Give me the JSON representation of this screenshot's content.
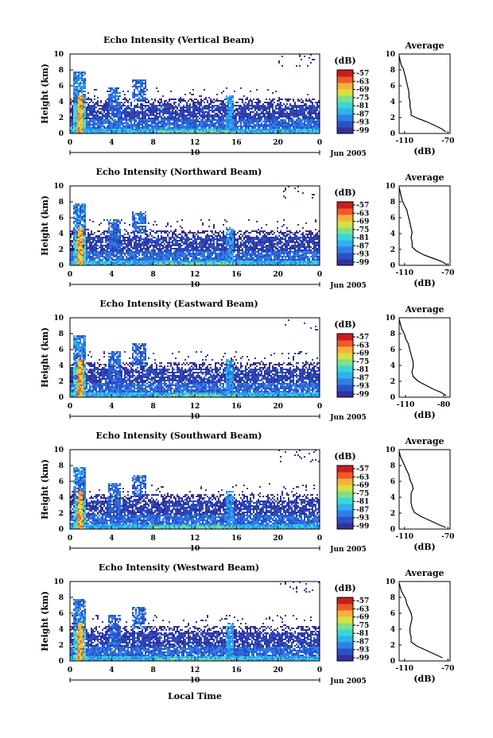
{
  "figure": {
    "xaxis_label": "Local Time",
    "date_label": "Jun 2005",
    "day_label": "10",
    "profile_title": "Average",
    "profile_xlabel": "(dB)",
    "colorbar_unit": "(dB)"
  },
  "colors": {
    "scale": [
      "#32329a",
      "#2a52c8",
      "#2f7fe6",
      "#2fb0f0",
      "#3ad6d6",
      "#7fe08a",
      "#d8e040",
      "#f6b13a",
      "#ee5a2a",
      "#c81e1e"
    ]
  },
  "chart_data": [
    {
      "type": "heatmap",
      "title": "Echo Intensity (Vertical Beam)",
      "ylabel": "Height (km)",
      "xlabel": "Local Time",
      "x_ticks": [
        "0",
        "4",
        "8",
        "12",
        "16",
        "20",
        "0"
      ],
      "y_ticks": [
        "0",
        "2",
        "4",
        "6",
        "8",
        "10"
      ],
      "xlim": [
        0,
        24
      ],
      "ylim": [
        0,
        10
      ],
      "colorbar": {
        "label": "(dB)",
        "ticks": [
          "-57",
          "-63",
          "-69",
          "-75",
          "-81",
          "-87",
          "-93",
          "-99"
        ]
      },
      "profile": {
        "title": "Average",
        "xlabel": "(dB)",
        "x_ticks": [
          "-110",
          "-70"
        ],
        "xlim": [
          -115,
          -68
        ],
        "ylim": [
          0,
          10
        ],
        "y_ticks": [
          "0",
          "2",
          "4",
          "6",
          "8",
          "10"
        ],
        "points": [
          [
            -115,
            9.8
          ],
          [
            -114,
            9.1
          ],
          [
            -113,
            8.6
          ],
          [
            -111,
            8.1
          ],
          [
            -110,
            7.5
          ],
          [
            -109,
            7.0
          ],
          [
            -108,
            6.4
          ],
          [
            -107,
            5.8
          ],
          [
            -106,
            5.2
          ],
          [
            -106,
            4.6
          ],
          [
            -105,
            4.0
          ],
          [
            -105,
            3.4
          ],
          [
            -104,
            2.8
          ],
          [
            -104,
            2.3
          ],
          [
            -98,
            1.9
          ],
          [
            -90,
            1.5
          ],
          [
            -82,
            1.0
          ],
          [
            -76,
            0.6
          ],
          [
            -72,
            0.2
          ]
        ]
      }
    },
    {
      "type": "heatmap",
      "title": "Echo Intensity (Northward Beam)",
      "ylabel": "Height (km)",
      "xlabel": "Local Time",
      "x_ticks": [
        "0",
        "4",
        "8",
        "12",
        "16",
        "20",
        "0"
      ],
      "y_ticks": [
        "0",
        "2",
        "4",
        "6",
        "8",
        "10"
      ],
      "xlim": [
        0,
        24
      ],
      "ylim": [
        0,
        10
      ],
      "colorbar": {
        "label": "(dB)",
        "ticks": [
          "-57",
          "-63",
          "-69",
          "-75",
          "-81",
          "-87",
          "-93",
          "-99"
        ]
      },
      "profile": {
        "title": "Average",
        "xlabel": "(dB)",
        "x_ticks": [
          "-110",
          "-70"
        ],
        "xlim": [
          -115,
          -68
        ],
        "ylim": [
          0,
          10
        ],
        "y_ticks": [
          "0",
          "2",
          "4",
          "6",
          "8",
          "10"
        ],
        "points": [
          [
            -115,
            9.8
          ],
          [
            -114,
            9.2
          ],
          [
            -113,
            8.6
          ],
          [
            -112,
            8.1
          ],
          [
            -110,
            7.5
          ],
          [
            -108,
            7.0
          ],
          [
            -107,
            6.4
          ],
          [
            -106,
            5.9
          ],
          [
            -105,
            5.3
          ],
          [
            -104,
            4.7
          ],
          [
            -103,
            4.1
          ],
          [
            -104,
            3.5
          ],
          [
            -103,
            2.9
          ],
          [
            -103,
            2.3
          ],
          [
            -99,
            1.8
          ],
          [
            -92,
            1.3
          ],
          [
            -84,
            0.9
          ],
          [
            -76,
            0.5
          ],
          [
            -71,
            0.1
          ]
        ]
      }
    },
    {
      "type": "heatmap",
      "title": "Echo Intensity (Eastward Beam)",
      "ylabel": "Height (km)",
      "xlabel": "Local Time",
      "x_ticks": [
        "0",
        "4",
        "8",
        "12",
        "16",
        "20",
        "0"
      ],
      "y_ticks": [
        "0",
        "2",
        "4",
        "6",
        "8",
        "10"
      ],
      "xlim": [
        0,
        24
      ],
      "ylim": [
        0,
        10
      ],
      "colorbar": {
        "label": "(dB)",
        "ticks": [
          "-57",
          "-63",
          "-69",
          "-75",
          "-81",
          "-87",
          "-93",
          "-99"
        ]
      },
      "profile": {
        "title": "Average",
        "xlabel": "(dB)",
        "x_ticks": [
          "-110",
          "-80"
        ],
        "xlim": [
          -115,
          -75
        ],
        "ylim": [
          0,
          10
        ],
        "y_ticks": [
          "0",
          "2",
          "4",
          "6",
          "8",
          "10"
        ],
        "points": [
          [
            -115,
            9.8
          ],
          [
            -114,
            9.2
          ],
          [
            -113,
            8.6
          ],
          [
            -111,
            8.0
          ],
          [
            -110,
            7.4
          ],
          [
            -108,
            6.8
          ],
          [
            -107,
            6.2
          ],
          [
            -106,
            5.6
          ],
          [
            -105,
            5.0
          ],
          [
            -104,
            4.4
          ],
          [
            -104,
            3.8
          ],
          [
            -105,
            3.2
          ],
          [
            -104,
            2.6
          ],
          [
            -100,
            2.0
          ],
          [
            -94,
            1.5
          ],
          [
            -88,
            1.0
          ],
          [
            -82,
            0.6
          ],
          [
            -78,
            0.2
          ]
        ]
      }
    },
    {
      "type": "heatmap",
      "title": "Echo Intensity (Southward Beam)",
      "ylabel": "Height (km)",
      "xlabel": "Local Time",
      "x_ticks": [
        "0",
        "4",
        "8",
        "12",
        "16",
        "20",
        "0"
      ],
      "y_ticks": [
        "0",
        "2",
        "4",
        "6",
        "8",
        "10"
      ],
      "xlim": [
        0,
        24
      ],
      "ylim": [
        0,
        10
      ],
      "colorbar": {
        "label": "(dB)",
        "ticks": [
          "-57",
          "-63",
          "-69",
          "-75",
          "-81",
          "-87",
          "-93",
          "-99"
        ]
      },
      "profile": {
        "title": "Average",
        "xlabel": "(dB)",
        "x_ticks": [
          "-110",
          "-70"
        ],
        "xlim": [
          -115,
          -68
        ],
        "ylim": [
          0,
          10
        ],
        "y_ticks": [
          "0",
          "2",
          "4",
          "6",
          "8",
          "10"
        ],
        "points": [
          [
            -115,
            9.8
          ],
          [
            -114,
            9.2
          ],
          [
            -112,
            8.6
          ],
          [
            -110,
            8.0
          ],
          [
            -108,
            7.4
          ],
          [
            -106,
            6.8
          ],
          [
            -105,
            6.2
          ],
          [
            -103,
            5.6
          ],
          [
            -102,
            5.1
          ],
          [
            -104,
            4.5
          ],
          [
            -104,
            3.9
          ],
          [
            -104,
            3.3
          ],
          [
            -103,
            2.7
          ],
          [
            -101,
            2.1
          ],
          [
            -95,
            1.6
          ],
          [
            -87,
            1.1
          ],
          [
            -79,
            0.6
          ],
          [
            -72,
            0.2
          ]
        ]
      }
    },
    {
      "type": "heatmap",
      "title": "Echo Intensity (Westward Beam)",
      "ylabel": "Height (km)",
      "xlabel": "Local Time",
      "x_ticks": [
        "0",
        "4",
        "8",
        "12",
        "16",
        "20",
        "0"
      ],
      "y_ticks": [
        "0",
        "2",
        "4",
        "6",
        "8",
        "10"
      ],
      "xlim": [
        0,
        24
      ],
      "ylim": [
        0,
        10
      ],
      "colorbar": {
        "label": "(dB)",
        "ticks": [
          "-57",
          "-63",
          "-69",
          "-75",
          "-81",
          "-87",
          "-93",
          "-99"
        ]
      },
      "profile": {
        "title": "Average",
        "xlabel": "(dB)",
        "x_ticks": [
          "-110",
          "-70"
        ],
        "xlim": [
          -115,
          -68
        ],
        "ylim": [
          0,
          10
        ],
        "y_ticks": [
          "0",
          "2",
          "4",
          "6",
          "8",
          "10"
        ],
        "points": [
          [
            -115,
            9.8
          ],
          [
            -114,
            9.3
          ],
          [
            -113,
            8.8
          ],
          [
            -111,
            8.3
          ],
          [
            -109,
            7.8
          ],
          [
            -108,
            7.2
          ],
          [
            -106,
            6.6
          ],
          [
            -104,
            6.0
          ],
          [
            -103,
            5.4
          ],
          [
            -104,
            4.8
          ],
          [
            -105,
            4.2
          ],
          [
            -105,
            3.6
          ],
          [
            -104,
            3.0
          ],
          [
            -104,
            2.4
          ],
          [
            -99,
            1.9
          ],
          [
            -91,
            1.4
          ],
          [
            -83,
            0.9
          ],
          [
            -75,
            0.4
          ]
        ]
      }
    }
  ]
}
